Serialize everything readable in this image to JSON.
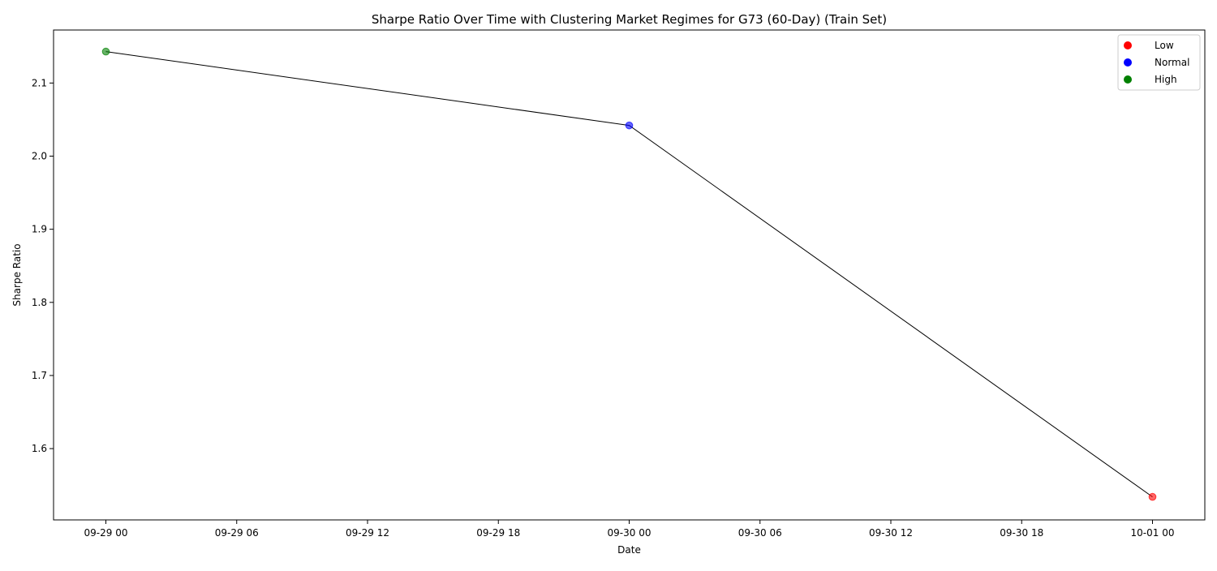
{
  "chart_data": {
    "type": "line",
    "title": "Sharpe Ratio Over Time with Clustering Market Regimes for G73 (60-Day) (Train Set)",
    "xlabel": "Date",
    "ylabel": "Sharpe Ratio",
    "x_ticks": [
      "09-29 00",
      "09-29 06",
      "09-29 12",
      "09-29 18",
      "09-30 00",
      "09-30 06",
      "09-30 12",
      "09-30 18",
      "10-01 00"
    ],
    "x_tick_hours": [
      0,
      6,
      12,
      18,
      24,
      30,
      36,
      42,
      48
    ],
    "xlim_hours": [
      -2.4,
      50.4
    ],
    "y_ticks": [
      "1.6",
      "1.7",
      "1.8",
      "1.9",
      "2.0",
      "2.1"
    ],
    "y_tick_values": [
      1.6,
      1.7,
      1.8,
      1.9,
      2.0,
      2.1
    ],
    "ylim": [
      1.5025,
      2.1725
    ],
    "grid": false,
    "legend_position": "top-right",
    "line_color": "#000000",
    "points": [
      {
        "x": "09-29 00",
        "hours": 0,
        "y": 2.143,
        "regime": "High"
      },
      {
        "x": "09-30 00",
        "hours": 24,
        "y": 2.042,
        "regime": "Normal"
      },
      {
        "x": "10-01 00",
        "hours": 48,
        "y": 1.534,
        "regime": "Low"
      }
    ],
    "legend": [
      {
        "label": "Low",
        "color": "#ff0000"
      },
      {
        "label": "Normal",
        "color": "#0000ff"
      },
      {
        "label": "High",
        "color": "#008000"
      }
    ]
  }
}
